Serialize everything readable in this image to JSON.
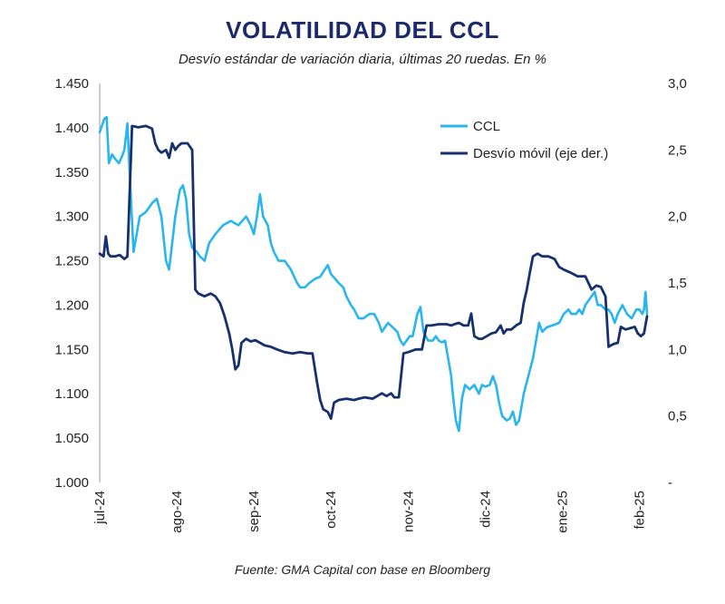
{
  "chart_data": {
    "type": "line",
    "title": "VOLATILIDAD DEL CCL",
    "subtitle": "Desvío estándar de variación diaria, últimas 20 ruedas. En %",
    "source": "Fuente: GMA Capital con base en Bloomberg",
    "x_tick_labels": [
      "jul-24",
      "ago-24",
      "sep-24",
      "oct-24",
      "nov-24",
      "dic-24",
      "ene-25",
      "feb-25"
    ],
    "left_axis": {
      "ylim": [
        1.0,
        1.45
      ],
      "tick_labels": [
        "1.450",
        "1.400",
        "1.350",
        "1.300",
        "1.250",
        "1.200",
        "1.150",
        "1.100",
        "1.050",
        "1.000"
      ]
    },
    "right_axis": {
      "ylim": [
        0,
        3.0
      ],
      "tick_labels": [
        "3,0",
        "2,5",
        "2,0",
        "1,5",
        "1,0",
        "0,5",
        "-"
      ]
    },
    "x_domain": [
      0,
      7.1
    ],
    "series": [
      {
        "name": "CCL",
        "color": "#29b6ee",
        "axis": "left",
        "points": [
          [
            0.0,
            1.395
          ],
          [
            0.06,
            1.41
          ],
          [
            0.09,
            1.412
          ],
          [
            0.12,
            1.36
          ],
          [
            0.16,
            1.37
          ],
          [
            0.2,
            1.365
          ],
          [
            0.25,
            1.36
          ],
          [
            0.3,
            1.37
          ],
          [
            0.32,
            1.375
          ],
          [
            0.36,
            1.405
          ],
          [
            0.4,
            1.33
          ],
          [
            0.44,
            1.26
          ],
          [
            0.48,
            1.28
          ],
          [
            0.52,
            1.3
          ],
          [
            0.6,
            1.305
          ],
          [
            0.68,
            1.315
          ],
          [
            0.74,
            1.32
          ],
          [
            0.8,
            1.3
          ],
          [
            0.86,
            1.25
          ],
          [
            0.9,
            1.24
          ],
          [
            0.94,
            1.27
          ],
          [
            0.98,
            1.3
          ],
          [
            1.04,
            1.33
          ],
          [
            1.08,
            1.335
          ],
          [
            1.12,
            1.32
          ],
          [
            1.16,
            1.28
          ],
          [
            1.2,
            1.265
          ],
          [
            1.26,
            1.26
          ],
          [
            1.3,
            1.255
          ],
          [
            1.36,
            1.25
          ],
          [
            1.42,
            1.27
          ],
          [
            1.5,
            1.28
          ],
          [
            1.6,
            1.29
          ],
          [
            1.7,
            1.295
          ],
          [
            1.8,
            1.29
          ],
          [
            1.9,
            1.3
          ],
          [
            1.96,
            1.29
          ],
          [
            2.0,
            1.28
          ],
          [
            2.04,
            1.3
          ],
          [
            2.08,
            1.325
          ],
          [
            2.12,
            1.3
          ],
          [
            2.18,
            1.29
          ],
          [
            2.22,
            1.27
          ],
          [
            2.26,
            1.26
          ],
          [
            2.32,
            1.25
          ],
          [
            2.4,
            1.25
          ],
          [
            2.48,
            1.24
          ],
          [
            2.56,
            1.225
          ],
          [
            2.6,
            1.22
          ],
          [
            2.66,
            1.22
          ],
          [
            2.72,
            1.225
          ],
          [
            2.8,
            1.23
          ],
          [
            2.86,
            1.232
          ],
          [
            2.92,
            1.24
          ],
          [
            2.96,
            1.245
          ],
          [
            3.0,
            1.235
          ],
          [
            3.05,
            1.23
          ],
          [
            3.1,
            1.225
          ],
          [
            3.16,
            1.22
          ],
          [
            3.2,
            1.21
          ],
          [
            3.26,
            1.2
          ],
          [
            3.3,
            1.195
          ],
          [
            3.36,
            1.185
          ],
          [
            3.42,
            1.185
          ],
          [
            3.5,
            1.19
          ],
          [
            3.56,
            1.19
          ],
          [
            3.62,
            1.18
          ],
          [
            3.66,
            1.17
          ],
          [
            3.7,
            1.175
          ],
          [
            3.74,
            1.18
          ],
          [
            3.8,
            1.175
          ],
          [
            3.86,
            1.17
          ],
          [
            3.9,
            1.16
          ],
          [
            3.94,
            1.155
          ],
          [
            3.98,
            1.16
          ],
          [
            4.02,
            1.165
          ],
          [
            4.06,
            1.165
          ],
          [
            4.12,
            1.19
          ],
          [
            4.16,
            1.198
          ],
          [
            4.2,
            1.17
          ],
          [
            4.26,
            1.16
          ],
          [
            4.32,
            1.16
          ],
          [
            4.36,
            1.165
          ],
          [
            4.4,
            1.16
          ],
          [
            4.44,
            1.158
          ],
          [
            4.48,
            1.16
          ],
          [
            4.52,
            1.14
          ],
          [
            4.56,
            1.12
          ],
          [
            4.58,
            1.1
          ],
          [
            4.62,
            1.07
          ],
          [
            4.66,
            1.058
          ],
          [
            4.7,
            1.095
          ],
          [
            4.74,
            1.11
          ],
          [
            4.8,
            1.105
          ],
          [
            4.86,
            1.11
          ],
          [
            4.92,
            1.1
          ],
          [
            4.96,
            1.11
          ],
          [
            5.0,
            1.108
          ],
          [
            5.06,
            1.11
          ],
          [
            5.1,
            1.12
          ],
          [
            5.14,
            1.11
          ],
          [
            5.18,
            1.09
          ],
          [
            5.22,
            1.075
          ],
          [
            5.28,
            1.07
          ],
          [
            5.32,
            1.072
          ],
          [
            5.36,
            1.08
          ],
          [
            5.4,
            1.065
          ],
          [
            5.44,
            1.07
          ],
          [
            5.5,
            1.1
          ],
          [
            5.56,
            1.12
          ],
          [
            5.62,
            1.14
          ],
          [
            5.66,
            1.16
          ],
          [
            5.7,
            1.18
          ],
          [
            5.74,
            1.17
          ],
          [
            5.8,
            1.175
          ],
          [
            5.9,
            1.178
          ],
          [
            5.96,
            1.18
          ],
          [
            6.02,
            1.19
          ],
          [
            6.08,
            1.195
          ],
          [
            6.12,
            1.19
          ],
          [
            6.18,
            1.19
          ],
          [
            6.22,
            1.195
          ],
          [
            6.26,
            1.19
          ],
          [
            6.3,
            1.2
          ],
          [
            6.34,
            1.205
          ],
          [
            6.38,
            1.21
          ],
          [
            6.42,
            1.215
          ],
          [
            6.46,
            1.2
          ],
          [
            6.5,
            1.2
          ],
          [
            6.56,
            1.195
          ],
          [
            6.6,
            1.195
          ],
          [
            6.64,
            1.19
          ],
          [
            6.68,
            1.18
          ],
          [
            6.72,
            1.19
          ],
          [
            6.78,
            1.2
          ],
          [
            6.84,
            1.19
          ],
          [
            6.9,
            1.185
          ],
          [
            6.96,
            1.195
          ],
          [
            7.0,
            1.195
          ],
          [
            7.04,
            1.19
          ],
          [
            7.06,
            1.195
          ],
          [
            7.08,
            1.215
          ],
          [
            7.1,
            1.19
          ]
        ]
      },
      {
        "name": "Desvío móvil (eje der.)",
        "color": "#17306e",
        "axis": "right",
        "points": [
          [
            0.0,
            1.72
          ],
          [
            0.05,
            1.7
          ],
          [
            0.08,
            1.85
          ],
          [
            0.11,
            1.72
          ],
          [
            0.14,
            1.7
          ],
          [
            0.2,
            1.7
          ],
          [
            0.26,
            1.71
          ],
          [
            0.32,
            1.68
          ],
          [
            0.36,
            1.7
          ],
          [
            0.42,
            2.68
          ],
          [
            0.5,
            2.67
          ],
          [
            0.6,
            2.68
          ],
          [
            0.68,
            2.66
          ],
          [
            0.72,
            2.55
          ],
          [
            0.76,
            2.5
          ],
          [
            0.8,
            2.48
          ],
          [
            0.86,
            2.5
          ],
          [
            0.9,
            2.44
          ],
          [
            0.94,
            2.55
          ],
          [
            0.98,
            2.5
          ],
          [
            1.02,
            2.53
          ],
          [
            1.06,
            2.55
          ],
          [
            1.14,
            2.55
          ],
          [
            1.2,
            2.5
          ],
          [
            1.24,
            1.45
          ],
          [
            1.28,
            1.42
          ],
          [
            1.36,
            1.4
          ],
          [
            1.44,
            1.42
          ],
          [
            1.5,
            1.4
          ],
          [
            1.56,
            1.35
          ],
          [
            1.62,
            1.25
          ],
          [
            1.68,
            1.12
          ],
          [
            1.72,
            1.0
          ],
          [
            1.76,
            0.85
          ],
          [
            1.8,
            0.88
          ],
          [
            1.84,
            1.05
          ],
          [
            1.9,
            1.08
          ],
          [
            1.96,
            1.06
          ],
          [
            2.02,
            1.07
          ],
          [
            2.08,
            1.05
          ],
          [
            2.14,
            1.03
          ],
          [
            2.22,
            1.02
          ],
          [
            2.3,
            1.0
          ],
          [
            2.4,
            0.98
          ],
          [
            2.5,
            0.97
          ],
          [
            2.6,
            0.98
          ],
          [
            2.7,
            0.97
          ],
          [
            2.76,
            0.97
          ],
          [
            2.82,
            0.75
          ],
          [
            2.86,
            0.62
          ],
          [
            2.9,
            0.55
          ],
          [
            2.96,
            0.53
          ],
          [
            3.0,
            0.48
          ],
          [
            3.04,
            0.6
          ],
          [
            3.1,
            0.62
          ],
          [
            3.2,
            0.63
          ],
          [
            3.3,
            0.62
          ],
          [
            3.36,
            0.63
          ],
          [
            3.44,
            0.64
          ],
          [
            3.54,
            0.63
          ],
          [
            3.6,
            0.65
          ],
          [
            3.66,
            0.67
          ],
          [
            3.72,
            0.65
          ],
          [
            3.78,
            0.67
          ],
          [
            3.82,
            0.64
          ],
          [
            3.88,
            0.64
          ],
          [
            3.94,
            0.97
          ],
          [
            4.0,
            0.98
          ],
          [
            4.1,
            1.0
          ],
          [
            4.18,
            1.0
          ],
          [
            4.24,
            1.18
          ],
          [
            4.3,
            1.18
          ],
          [
            4.4,
            1.19
          ],
          [
            4.5,
            1.19
          ],
          [
            4.56,
            1.18
          ],
          [
            4.6,
            1.19
          ],
          [
            4.66,
            1.2
          ],
          [
            4.72,
            1.18
          ],
          [
            4.78,
            1.18
          ],
          [
            4.82,
            1.27
          ],
          [
            4.86,
            1.1
          ],
          [
            4.92,
            1.08
          ],
          [
            4.96,
            1.08
          ],
          [
            5.02,
            1.1
          ],
          [
            5.08,
            1.12
          ],
          [
            5.14,
            1.13
          ],
          [
            5.2,
            1.18
          ],
          [
            5.24,
            1.12
          ],
          [
            5.28,
            1.15
          ],
          [
            5.34,
            1.15
          ],
          [
            5.4,
            1.18
          ],
          [
            5.46,
            1.2
          ],
          [
            5.5,
            1.35
          ],
          [
            5.54,
            1.45
          ],
          [
            5.58,
            1.58
          ],
          [
            5.62,
            1.7
          ],
          [
            5.68,
            1.72
          ],
          [
            5.74,
            1.7
          ],
          [
            5.82,
            1.7
          ],
          [
            5.9,
            1.68
          ],
          [
            5.96,
            1.62
          ],
          [
            6.02,
            1.6
          ],
          [
            6.1,
            1.58
          ],
          [
            6.2,
            1.55
          ],
          [
            6.3,
            1.55
          ],
          [
            6.34,
            1.5
          ],
          [
            6.38,
            1.45
          ],
          [
            6.44,
            1.48
          ],
          [
            6.5,
            1.47
          ],
          [
            6.56,
            1.4
          ],
          [
            6.6,
            1.02
          ],
          [
            6.66,
            1.04
          ],
          [
            6.72,
            1.05
          ],
          [
            6.76,
            1.17
          ],
          [
            6.82,
            1.15
          ],
          [
            6.88,
            1.16
          ],
          [
            6.94,
            1.17
          ],
          [
            6.98,
            1.12
          ],
          [
            7.02,
            1.1
          ],
          [
            7.06,
            1.12
          ],
          [
            7.1,
            1.25
          ]
        ]
      }
    ],
    "legend": {
      "position": "top-right"
    },
    "grid": false
  }
}
